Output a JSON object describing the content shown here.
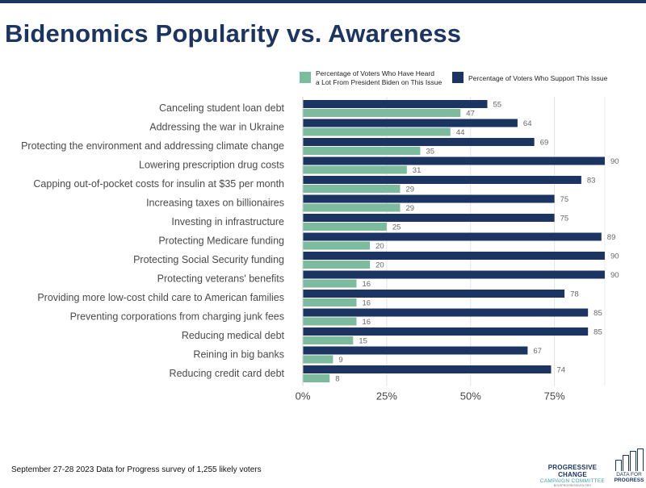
{
  "page": {
    "title": "Bidenomics Popularity vs. Awareness",
    "footer_note": "September 27-28 2023 Data for Progress survey of 1,255 likely voters",
    "logos": {
      "pccc_line1": "PROGRESSIVE CHANGE",
      "pccc_line2": "CAMPAIGN COMMITTEE",
      "pccc_line3": "BOLDPROGRESSIVES.ORG",
      "dfp_line1": "DATA FOR",
      "dfp_line2": "PROGRESS"
    }
  },
  "chart_data": {
    "type": "bar",
    "orientation": "horizontal",
    "title": "Bidenomics Popularity vs. Awareness",
    "xlim": [
      0,
      90
    ],
    "xticks": [
      0,
      25,
      50,
      75
    ],
    "xtick_labels": [
      "0%",
      "25%",
      "50%",
      "75%"
    ],
    "grid": true,
    "legend_position": "top",
    "categories": [
      "Canceling student loan debt",
      "Addressing the war in Ukraine",
      "Protecting the environment and addressing climate change",
      "Lowering prescription drug costs",
      "Capping out-of-pocket costs for insulin at $35 per month",
      "Increasing taxes on billionaires",
      "Investing in infrastructure",
      "Protecting Medicare funding",
      "Protecting Social Security funding",
      "Protecting veterans' benefits",
      "Providing more low-cost child care to American families",
      "Preventing corporations from charging junk fees",
      "Reducing medical debt",
      "Reining in big banks",
      "Reducing credit card debt"
    ],
    "series": [
      {
        "name": "Percentage of Voters Who Support This Issue",
        "color": "#1c3461",
        "values": [
          55,
          64,
          69,
          90,
          83,
          75,
          75,
          89,
          90,
          90,
          78,
          85,
          85,
          67,
          74
        ]
      },
      {
        "name_lines": [
          "Percentage of Voters Who Have Heard",
          "a Lot From President Biden on This Issue"
        ],
        "color": "#7cbb9e",
        "values": [
          47,
          44,
          35,
          31,
          29,
          29,
          25,
          20,
          20,
          16,
          16,
          16,
          15,
          9,
          8
        ]
      }
    ]
  }
}
